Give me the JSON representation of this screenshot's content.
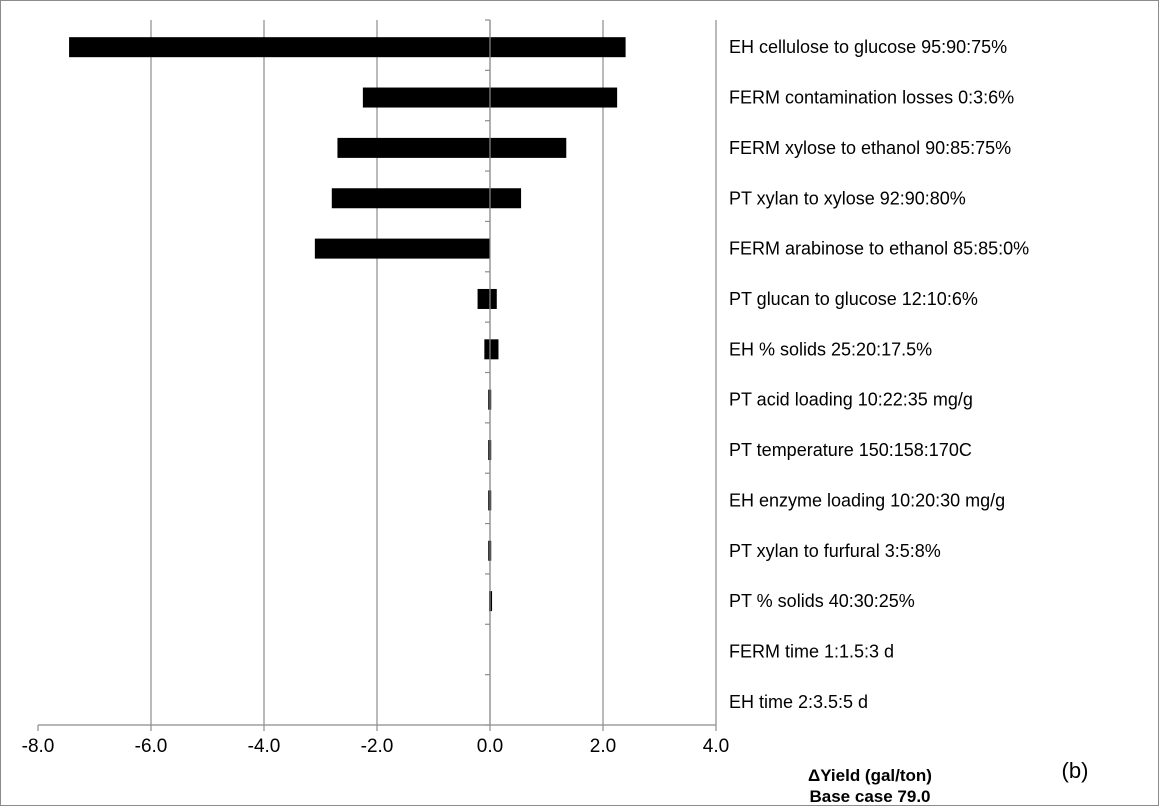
{
  "chart_data": {
    "type": "bar",
    "orientation": "horizontal",
    "chart_style": "tornado",
    "categories": [
      "EH cellulose to glucose 95:90:75%",
      "FERM contamination  losses 0:3:6%",
      "FERM xylose to ethanol 90:85:75%",
      "PT xylan to xylose 92:90:80%",
      "FERM arabinose to ethanol 85:85:0%",
      "PT glucan to glucose 12:10:6%",
      "EH % solids 25:20:17.5%",
      "PT acid loading 10:22:35 mg/g",
      "PT temperature  150:158:170C",
      "EH enzyme loading 10:20:30 mg/g",
      "PT xylan to furfural 3:5:8%",
      "PT % solids 40:30:25%",
      "FERM time  1:1.5:3 d",
      "EH time  2:3.5:5 d"
    ],
    "low": [
      -7.45,
      -2.25,
      -2.7,
      -2.8,
      -3.1,
      -0.22,
      -0.1,
      -0.03,
      -0.03,
      -0.03,
      -0.03,
      0,
      0,
      0
    ],
    "high": [
      2.4,
      2.25,
      1.35,
      0.55,
      0,
      0.12,
      0.15,
      0.02,
      0.02,
      0.02,
      0.02,
      0.02,
      0,
      0
    ],
    "xlim": [
      -8.0,
      4.0
    ],
    "x_ticks": [
      "-8.0",
      "-6.0",
      "-4.0",
      "-2.0",
      "0.0",
      "2.0",
      "4.0"
    ],
    "x_tick_values": [
      -8,
      -6,
      -4,
      -2,
      0,
      2,
      4
    ],
    "xlabel": "ΔYield (gal/ton)",
    "base_case": "Base case 79.0",
    "panel_label": "(b)",
    "bar_color": "#000000",
    "grid": "vertical major gridlines",
    "grid_color": "#8c8c8c"
  }
}
